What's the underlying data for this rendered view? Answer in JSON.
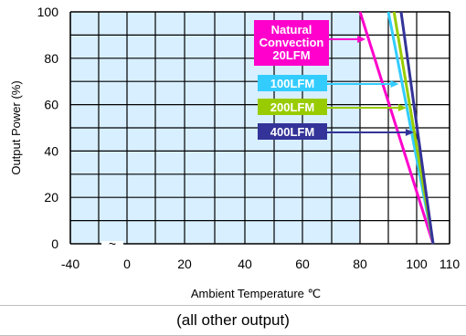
{
  "chart_data": {
    "type": "line",
    "xlabel": "Ambient Temperature ℃",
    "ylabel": "Output Power  (%)",
    "x_ticks": [
      "-40",
      "0",
      "20",
      "40",
      "60",
      "80",
      "100",
      "110"
    ],
    "y_ticks": [
      "100",
      "80",
      "60",
      "40",
      "20",
      "0"
    ],
    "xlim": [
      -40,
      110
    ],
    "ylim": [
      0,
      100
    ],
    "axis_break_symbol": "~",
    "grid": true,
    "shaded_region": {
      "x_from": -40,
      "x_to": 80,
      "color": "#d8efff"
    },
    "series": [
      {
        "name": "Natural Convection 20LFM",
        "color": "#ff00cc",
        "points": [
          [
            80,
            100
          ],
          [
            105,
            0
          ]
        ]
      },
      {
        "name": "100LFM",
        "color": "#33ccff",
        "points": [
          [
            90,
            100
          ],
          [
            105,
            0
          ]
        ]
      },
      {
        "name": "200LFM",
        "color": "#99cc00",
        "points": [
          [
            92,
            100
          ],
          [
            105,
            0
          ]
        ]
      },
      {
        "name": "400LFM",
        "color": "#333399",
        "points": [
          [
            94.5,
            100
          ],
          [
            105,
            0
          ]
        ]
      }
    ],
    "labels": [
      {
        "lines": [
          "Natural",
          "Convection",
          "20LFM"
        ],
        "series_index": 0
      },
      {
        "lines": [
          "100LFM"
        ],
        "series_index": 1
      },
      {
        "lines": [
          "200LFM"
        ],
        "series_index": 2
      },
      {
        "lines": [
          "400LFM"
        ],
        "series_index": 3
      }
    ]
  },
  "caption": "(all other output)"
}
